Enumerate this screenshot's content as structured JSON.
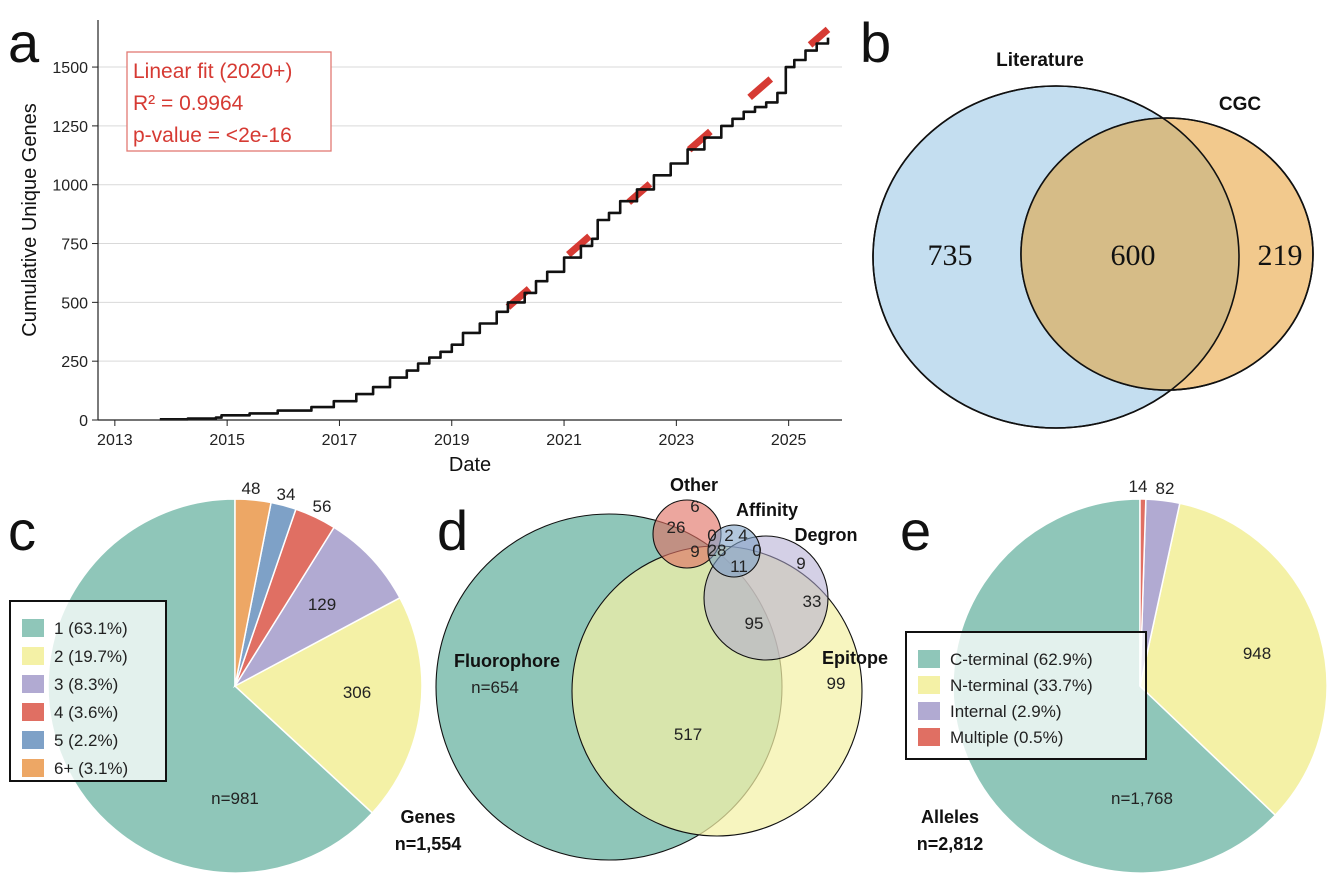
{
  "colors": {
    "teal": "#8fc6b9",
    "yellow": "#f4f1a6",
    "purple": "#b1aad2",
    "red": "#e06f63",
    "blue": "#7ea1c7",
    "orange": "#eda765",
    "venn_blue": "#c4def0",
    "venn_orange": "#f2c98d",
    "venn_overlap": "#d6bc87",
    "fit_red": "#d63a33",
    "text_red": "#d63a33"
  },
  "panels": {
    "a": {
      "letter": "a"
    },
    "b": {
      "letter": "b"
    },
    "c": {
      "letter": "c"
    },
    "d": {
      "letter": "d"
    },
    "e": {
      "letter": "e"
    }
  },
  "chart_data": [
    {
      "id": "a",
      "type": "line",
      "xlabel": "Date",
      "ylabel": "Cumulative Unique Genes",
      "xlim": [
        2012.7,
        2025.95
      ],
      "ylim": [
        0,
        1700
      ],
      "xticks": [
        2013,
        2015,
        2017,
        2019,
        2021,
        2023,
        2025
      ],
      "xtick_labels": [
        "2013",
        "2015",
        "2017",
        "2019",
        "2021",
        "2023",
        "2025"
      ],
      "yticks": [
        0,
        250,
        500,
        750,
        1000,
        1250,
        1500
      ],
      "ytick_labels": [
        "0",
        "250",
        "500",
        "750",
        "1000",
        "1250",
        "1500"
      ],
      "grid": "y",
      "series": [
        {
          "name": "cumulative",
          "x": [
            2013.8,
            2014.3,
            2014.8,
            2014.9,
            2015.4,
            2015.9,
            2016.5,
            2016.9,
            2017.3,
            2017.6,
            2017.9,
            2018.2,
            2018.4,
            2018.6,
            2018.8,
            2019.0,
            2019.2,
            2019.5,
            2019.8,
            2020.0,
            2020.3,
            2020.5,
            2020.7,
            2021.0,
            2021.3,
            2021.5,
            2021.6,
            2021.8,
            2022.0,
            2022.3,
            2022.6,
            2022.9,
            2023.2,
            2023.5,
            2023.8,
            2024.0,
            2024.2,
            2024.4,
            2024.6,
            2024.8,
            2024.95,
            2025.1,
            2025.3,
            2025.5,
            2025.7
          ],
          "y": [
            3,
            6,
            10,
            20,
            28,
            40,
            55,
            80,
            110,
            140,
            180,
            210,
            240,
            265,
            290,
            320,
            370,
            410,
            460,
            500,
            540,
            590,
            630,
            690,
            740,
            770,
            850,
            880,
            930,
            980,
            1040,
            1090,
            1150,
            1200,
            1250,
            1280,
            1310,
            1330,
            1350,
            1390,
            1500,
            1530,
            1570,
            1600,
            1625
          ]
        },
        {
          "name": "Linear fit (2020+)",
          "style": "dashed",
          "x": [
            2020.0,
            2025.7
          ],
          "y": [
            480,
            1660
          ]
        }
      ],
      "annotation": {
        "line1": "Linear fit (2020+)",
        "line2": "R² = 0.9964",
        "line3": "p-value = <2e-16"
      }
    },
    {
      "id": "b",
      "type": "venn",
      "sets": [
        "Literature",
        "CGC"
      ],
      "values": {
        "only_a": 735,
        "both": 600,
        "only_b": 219
      },
      "labels": {
        "only_a": "735",
        "both": "600",
        "only_b": "219"
      }
    },
    {
      "id": "c",
      "type": "pie",
      "values": [
        981,
        306,
        129,
        56,
        34,
        48
      ],
      "slice_labels": [
        "n=981",
        "306",
        "129",
        "56",
        "34",
        "48"
      ],
      "legend": [
        "1 (63.1%)",
        "2 (19.7%)",
        "3 (8.3%)",
        "4 (3.6%)",
        "5 (2.2%)",
        "6+ (3.1%)"
      ],
      "colors": [
        "#8fc6b9",
        "#f4f1a6",
        "#b1aad2",
        "#e06f63",
        "#7ea1c7",
        "#eda765"
      ],
      "caption_line1": "Genes",
      "caption_line2": "n=1,554"
    },
    {
      "id": "d",
      "type": "venn",
      "sets": [
        "Fluorophore",
        "Epitope",
        "Other",
        "Affinity",
        "Degron"
      ],
      "set_labels": {
        "fluorophore": "Fluorophore",
        "fluorophore_n": "n=654",
        "epitope": "Epitope",
        "other": "Other",
        "affinity": "Affinity",
        "degron": "Degron"
      },
      "region_labels": [
        "517",
        "99",
        "95",
        "33",
        "26",
        "6",
        "9",
        "9",
        "11",
        "28",
        "0",
        "2",
        "4",
        "0"
      ]
    },
    {
      "id": "e",
      "type": "pie",
      "values": [
        1768,
        948,
        82,
        14
      ],
      "slice_labels": [
        "n=1,768",
        "948",
        "82",
        "14"
      ],
      "legend": [
        "C-terminal (62.9%)",
        "N-terminal (33.7%)",
        "Internal (2.9%)",
        "Multiple (0.5%)"
      ],
      "colors": [
        "#8fc6b9",
        "#f4f1a6",
        "#b1aad2",
        "#e06f63"
      ],
      "caption_line1": "Alleles",
      "caption_line2": "n=2,812"
    }
  ]
}
